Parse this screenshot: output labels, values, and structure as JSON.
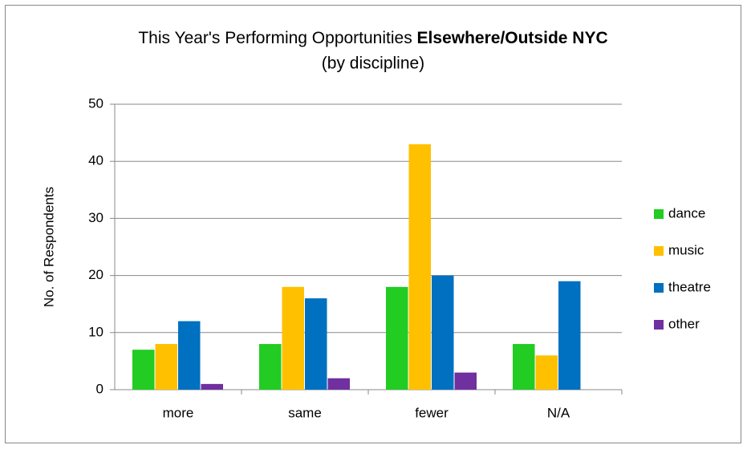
{
  "chart_data": {
    "type": "bar",
    "title": "This Year's Performing Opportunities",
    "title_emphasis": "Elsewhere/Outside NYC",
    "subtitle": "(by discipline)",
    "y_label": "No. of Respondents",
    "categories": [
      "more",
      "same",
      "fewer",
      "N/A"
    ],
    "series": [
      {
        "name": "dance",
        "color": "#22cc22",
        "values": [
          7,
          8,
          18,
          8
        ]
      },
      {
        "name": "music",
        "color": "#ffc000",
        "values": [
          8,
          18,
          43,
          6
        ]
      },
      {
        "name": "theatre",
        "color": "#0070c0",
        "values": [
          12,
          16,
          20,
          19
        ]
      },
      {
        "name": "other",
        "color": "#7030a0",
        "values": [
          1,
          2,
          3,
          0
        ]
      }
    ],
    "ylim": [
      0,
      50
    ],
    "yticks": [
      0,
      10,
      20,
      30,
      40,
      50
    ],
    "grid": true,
    "legend": "right"
  }
}
